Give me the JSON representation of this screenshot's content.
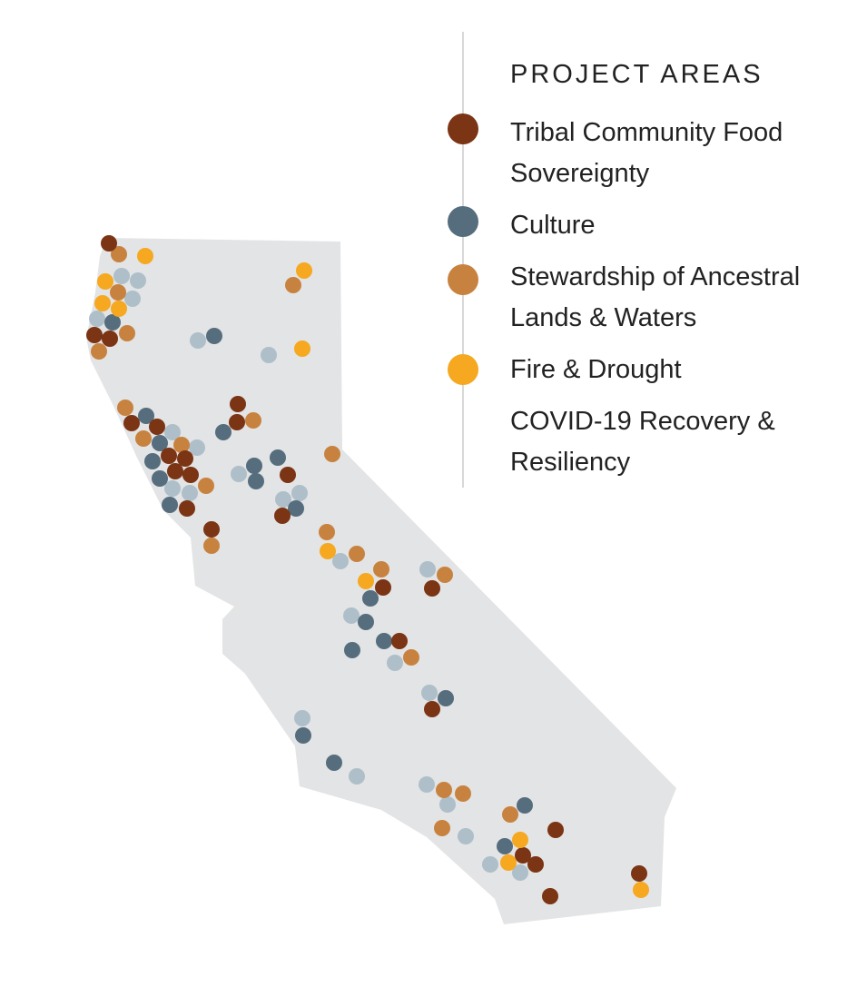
{
  "legend": {
    "title": "PROJECT AREAS",
    "items": [
      {
        "label": "Tribal Community Food Sovereignty",
        "color": "#7b3414"
      },
      {
        "label": "Culture",
        "color": "#566d7e"
      },
      {
        "label": "Stewardship of Ancestral Lands & Waters",
        "color": "#c8823f"
      },
      {
        "label": "Fire & Drought",
        "color": "#f5a820"
      },
      {
        "label": "COVID-19 Recovery & Resiliency"
      }
    ]
  }
}
